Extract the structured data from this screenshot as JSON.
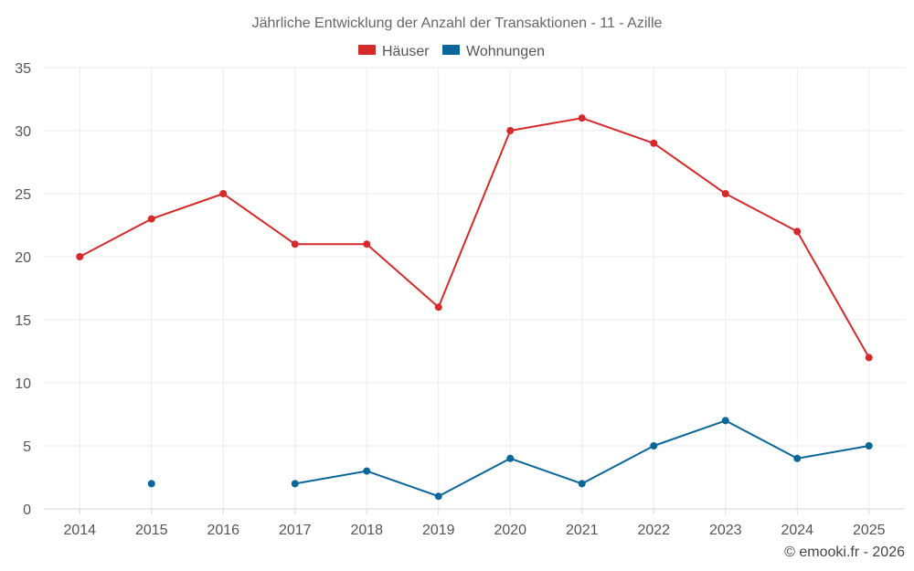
{
  "chart_data": {
    "type": "line",
    "title": "Jährliche Entwicklung der Anzahl der Transaktionen - 11 - Azille",
    "categories": [
      "2014",
      "2015",
      "2016",
      "2017",
      "2018",
      "2019",
      "2020",
      "2021",
      "2022",
      "2023",
      "2024",
      "2025"
    ],
    "ylim": [
      0,
      35
    ],
    "yticks": [
      0,
      5,
      10,
      15,
      20,
      25,
      30,
      35
    ],
    "xlabel": "",
    "ylabel": "",
    "grid": true,
    "legend_position": "top-center",
    "series": [
      {
        "name": "Häuser",
        "color": "#d62a2a",
        "values": [
          20,
          23,
          25,
          21,
          21,
          16,
          30,
          31,
          29,
          25,
          22,
          12
        ]
      },
      {
        "name": "Wohnungen",
        "color": "#0a6699",
        "values": [
          null,
          2,
          null,
          2,
          3,
          1,
          4,
          2,
          5,
          7,
          4,
          5
        ]
      }
    ]
  },
  "credit": "© emooki.fr - 2026"
}
